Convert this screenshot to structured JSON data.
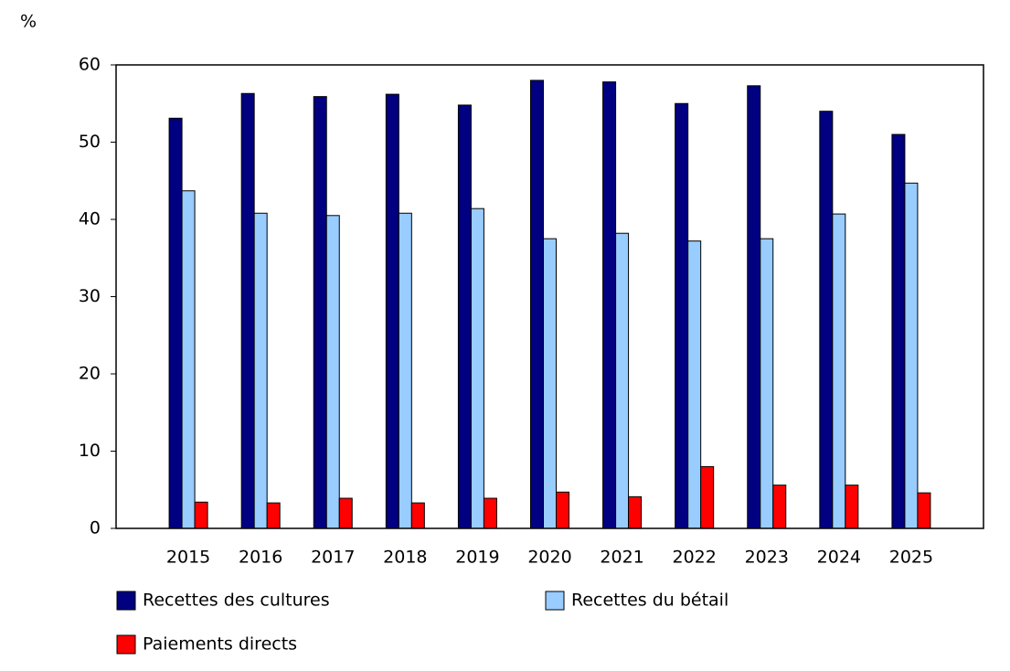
{
  "chart_data": {
    "type": "bar",
    "y_label": "%",
    "categories": [
      "2015",
      "2016",
      "2017",
      "2018",
      "2019",
      "2020",
      "2021",
      "2022",
      "2023",
      "2024",
      "2025"
    ],
    "series": [
      {
        "name": "Recettes des cultures",
        "color": "#000080",
        "values": [
          53.1,
          56.3,
          55.9,
          56.2,
          54.8,
          58.0,
          57.8,
          55.0,
          57.3,
          54.0,
          51.0
        ]
      },
      {
        "name": "Recettes du bétail",
        "color": "#99ccff",
        "values": [
          43.7,
          40.8,
          40.5,
          40.8,
          41.4,
          37.5,
          38.2,
          37.2,
          37.5,
          40.7,
          44.7
        ]
      },
      {
        "name": "Paiements directs",
        "color": "#ff0000",
        "values": [
          3.4,
          3.3,
          3.9,
          3.3,
          3.9,
          4.7,
          4.1,
          8.0,
          5.6,
          5.6,
          4.6
        ]
      }
    ],
    "ylim": [
      0,
      60
    ],
    "yticks": [
      0,
      10,
      20,
      30,
      40,
      50,
      60
    ]
  }
}
